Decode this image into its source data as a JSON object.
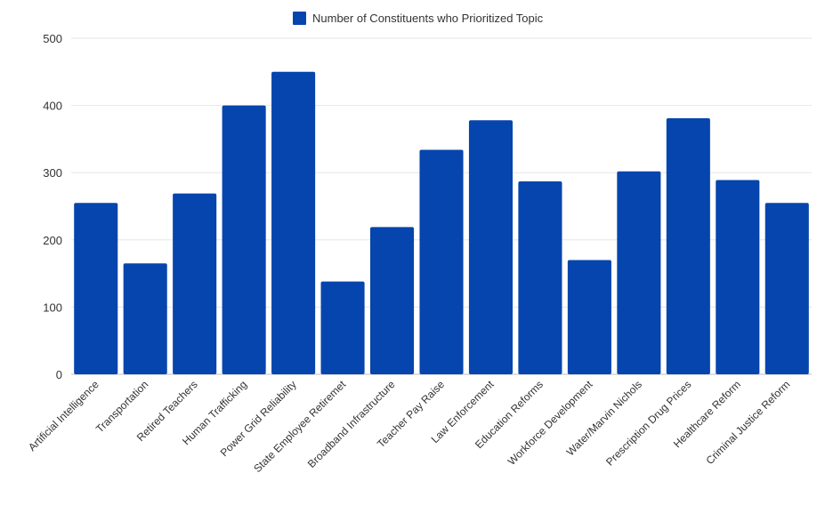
{
  "chart_data": {
    "type": "bar",
    "legend": {
      "label": "Number of Constituents who Prioritized Topic",
      "position": "top-center"
    },
    "color": "#0645AD",
    "gridlines": true,
    "categories": [
      "Artificial Intelligence",
      "Transportation",
      "Retired Teachers",
      "Human Trafficking",
      "Power Grid Reliability",
      "State Employee Retiremet",
      "Broadband Infrastructure",
      "Teacher Pay Raise",
      "Law Enforcement",
      "Education Reforms",
      "Workforce Development",
      "Water/Marvin Nichols",
      "Prescription Drug Prices",
      "Healthcare Reform",
      "Criminal Justice Reform"
    ],
    "series": [
      {
        "name": "Number of Constituents who Prioritized Topic",
        "values": [
          255,
          165,
          269,
          400,
          450,
          138,
          219,
          334,
          378,
          287,
          170,
          302,
          381,
          289,
          255
        ]
      }
    ],
    "ylim": [
      0,
      500
    ],
    "yticks": [
      0,
      100,
      200,
      300,
      400,
      500
    ]
  }
}
